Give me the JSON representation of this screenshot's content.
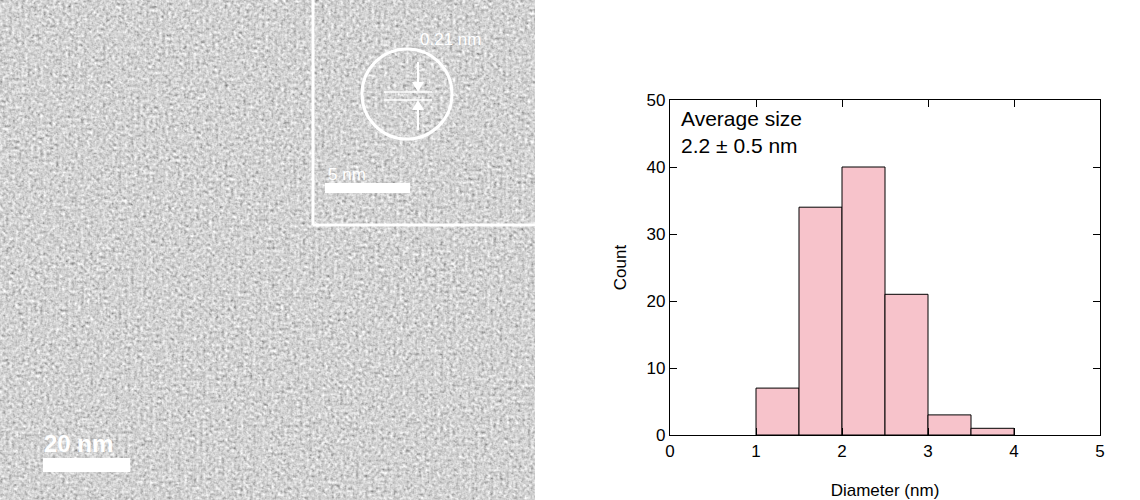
{
  "chart_data": {
    "type": "histogram",
    "bins": [
      1.0,
      1.5,
      2.0,
      2.5,
      3.0,
      3.5,
      4.0
    ],
    "values": [
      7,
      34,
      40,
      21,
      3,
      1
    ],
    "color": "#f7c3cb",
    "x_label": "Diameter (nm)",
    "y_label": "Count",
    "annotations": [
      "Average size",
      "2.2 ± 0.5 nm"
    ],
    "xlim": [
      0,
      5
    ],
    "xticks": [
      0,
      1,
      2,
      3,
      4,
      5
    ],
    "ylim": [
      0,
      50
    ],
    "yticks": [
      0,
      10,
      20,
      30,
      40,
      50
    ],
    "grid": false
  },
  "image": {
    "scale_bar": "20 nm",
    "inset_scale_bar": "5 nm",
    "lattice_spacing": "0.21 nm"
  }
}
